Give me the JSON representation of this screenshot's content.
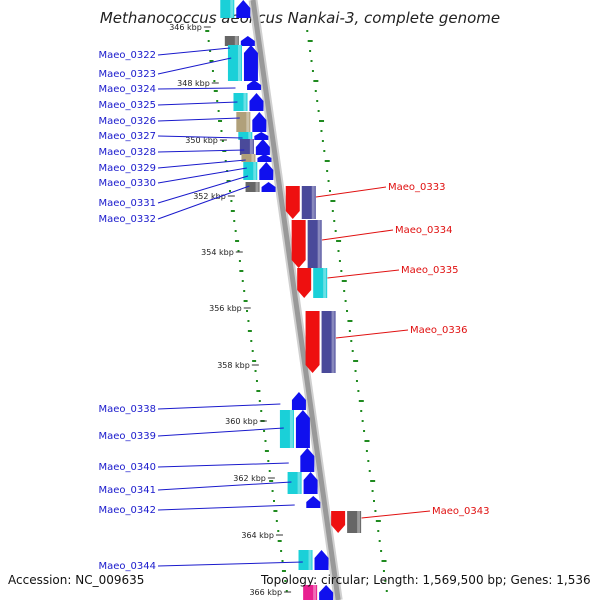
{
  "title": "Methanococcus aeolicus Nankai-3, complete genome",
  "footer": {
    "accession": "Accession: NC_009635",
    "topology": "Topology: circular; Length: 1,569,500 bp; Genes: 1,536"
  },
  "colors": {
    "forward_label": "#1a1acc",
    "reverse_label": "#e01010",
    "backbone": "#999999",
    "gc_ticks": "#1f8a1f",
    "cds_forward": "#1010ee",
    "cds_reverse": "#ee1010",
    "cog_cyan": "#1ad0d8",
    "cog_slate": "#4a4a9a",
    "cog_khaki": "#b0a07a",
    "cog_grey": "#666666",
    "cog_pink": "#e82090"
  },
  "kbp_ticks": [
    "346 kbp",
    "348 kbp",
    "350 kbp",
    "352 kbp",
    "354 kbp",
    "356 kbp",
    "358 kbp",
    "360 kbp",
    "362 kbp",
    "364 kbp",
    "366 kbp"
  ],
  "forward_genes": [
    "Maeo_0322",
    "Maeo_0323",
    "Maeo_0324",
    "Maeo_0325",
    "Maeo_0326",
    "Maeo_0327",
    "Maeo_0328",
    "Maeo_0329",
    "Maeo_0330",
    "Maeo_0331",
    "Maeo_0332",
    "Maeo_0338",
    "Maeo_0339",
    "Maeo_0340",
    "Maeo_0341",
    "Maeo_0342",
    "Maeo_0344"
  ],
  "reverse_genes": [
    "Maeo_0333",
    "Maeo_0334",
    "Maeo_0335",
    "Maeo_0336",
    "Maeo_0343"
  ]
}
